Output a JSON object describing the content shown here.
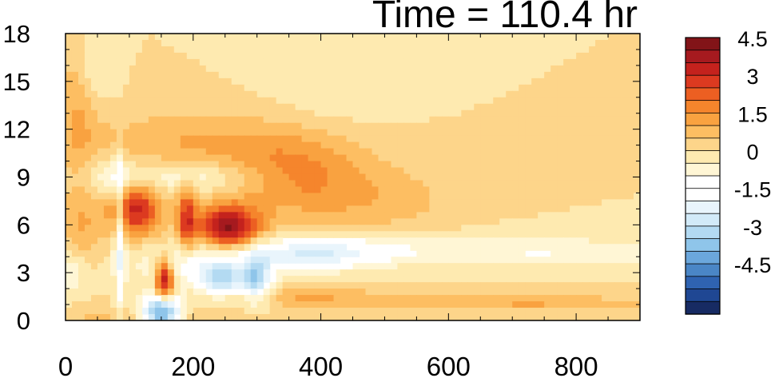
{
  "chart_data": {
    "type": "heatmap",
    "title": "Time = 110.4 hr",
    "xlabel": "",
    "ylabel": "",
    "xlim": [
      0,
      900
    ],
    "ylim": [
      0,
      18
    ],
    "x_ticks": [
      0,
      200,
      400,
      600,
      800
    ],
    "x_minor_step": 50,
    "y_ticks": [
      0,
      3,
      6,
      9,
      12,
      15,
      18
    ],
    "y_minor_step": 1,
    "grid": false,
    "legend": "colorbar-right",
    "colorbar": {
      "min": -6,
      "max": 6,
      "step": 0.5,
      "tick_values": [
        4.5,
        3,
        1.5,
        0,
        -1.5,
        -3,
        -4.5
      ],
      "tick_labels": [
        "4.5",
        "3",
        "1.5",
        "0",
        "-1.5",
        "-3",
        "-4.5"
      ],
      "colors": [
        "#172b63",
        "#1f4793",
        "#2f63b1",
        "#4a86c6",
        "#6ba7dc",
        "#8fc5ea",
        "#b3daf2",
        "#d2eaf8",
        "#e9f5fc",
        "#ffffff",
        "#ffffff",
        "#fff6d5",
        "#feeab0",
        "#fdd58a",
        "#fdbe62",
        "#f9a240",
        "#f5852c",
        "#ec5f22",
        "#dc3a20",
        "#c4221d",
        "#a61a1f",
        "#821418"
      ]
    },
    "features": [
      {
        "x": 0,
        "z": 3.0,
        "sx": 25,
        "sz": 1.0,
        "v": -1.2
      },
      {
        "x": 20,
        "z": 14.0,
        "sx": 20,
        "sz": 3.0,
        "v": 1.0
      },
      {
        "x": 25,
        "z": 6.0,
        "sx": 25,
        "sz": 2.0,
        "v": 1.0
      },
      {
        "x": 40,
        "z": 16.0,
        "sx": 20,
        "sz": 1.5,
        "v": -0.8
      },
      {
        "x": 75,
        "z": 9.0,
        "sx": 25,
        "sz": 1.0,
        "v": -0.9
      },
      {
        "x": 85,
        "z": 5.0,
        "sx": 6,
        "sz": 3.5,
        "v": -2.0
      },
      {
        "x": 110,
        "z": 7.0,
        "sx": 28,
        "sz": 1.2,
        "v": 3.2
      },
      {
        "x": 150,
        "z": 0.5,
        "sx": 22,
        "sz": 0.8,
        "v": -5.0
      },
      {
        "x": 155,
        "z": 2.5,
        "sx": 10,
        "sz": 1.0,
        "v": 4.0
      },
      {
        "x": 190,
        "z": 6.5,
        "sx": 10,
        "sz": 1.5,
        "v": 2.5
      },
      {
        "x": 190,
        "z": 9.0,
        "sx": 90,
        "sz": 0.8,
        "v": -1.3
      },
      {
        "x": 200,
        "z": 11.0,
        "sx": 140,
        "sz": 1.5,
        "v": 1.0
      },
      {
        "x": 215,
        "z": 3.5,
        "sx": 70,
        "sz": 0.9,
        "v": -1.4
      },
      {
        "x": 245,
        "z": 2.5,
        "sx": 25,
        "sz": 0.8,
        "v": -2.5
      },
      {
        "x": 255,
        "z": 5.8,
        "sx": 35,
        "sz": 1.0,
        "v": 4.0
      },
      {
        "x": 300,
        "z": 2.5,
        "sx": 15,
        "sz": 1.0,
        "v": -3.0
      },
      {
        "x": 360,
        "z": 9.0,
        "sx": 80,
        "sz": 1.8,
        "v": 1.5
      },
      {
        "x": 370,
        "z": 1.5,
        "sx": 100,
        "sz": 0.4,
        "v": 0.9
      },
      {
        "x": 390,
        "z": 4.2,
        "sx": 80,
        "sz": 0.7,
        "v": -2.2
      },
      {
        "x": 420,
        "z": 14.5,
        "sx": 70,
        "sz": 2.0,
        "v": -0.4
      },
      {
        "x": 500,
        "z": 7.5,
        "sx": 80,
        "sz": 1.5,
        "v": 0.7
      },
      {
        "x": 600,
        "z": 4.5,
        "sx": 250,
        "sz": 0.7,
        "v": -0.7
      },
      {
        "x": 660,
        "z": 1.2,
        "sx": 200,
        "sz": 0.4,
        "v": 0.5
      },
      {
        "x": 750,
        "z": 1.0,
        "sx": 150,
        "sz": 0.3,
        "v": 0.6
      },
      {
        "x": 800,
        "z": 4.2,
        "sx": 150,
        "sz": 0.5,
        "v": -0.5
      },
      {
        "x": 130,
        "z": 0.3,
        "sx": 120,
        "sz": 0.4,
        "v": 0.7
      }
    ]
  }
}
